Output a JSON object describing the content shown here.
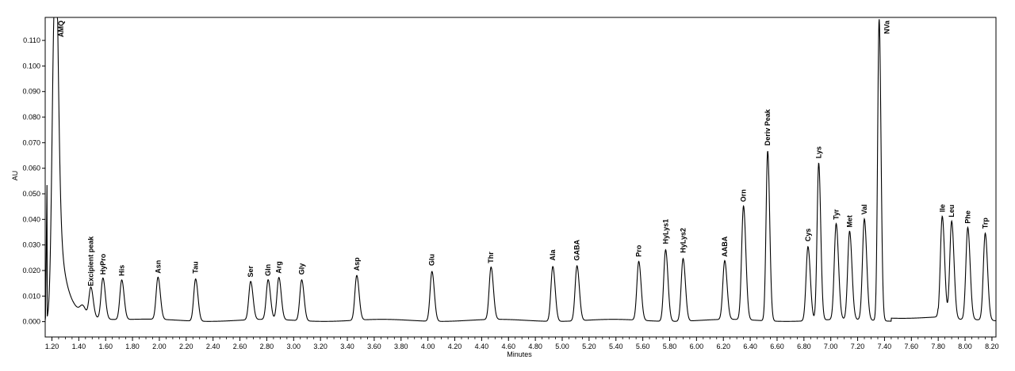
{
  "chart_data": {
    "type": "line",
    "xlabel": "Minutes",
    "ylabel": "AU",
    "xlim": [
      1.15,
      8.23
    ],
    "ylim": [
      -0.006,
      0.119
    ],
    "x_ticks": [
      "1.20",
      "1.40",
      "1.60",
      "1.80",
      "2.00",
      "2.20",
      "2.40",
      "2.60",
      "2.80",
      "3.00",
      "3.20",
      "3.40",
      "3.60",
      "3.80",
      "4.00",
      "4.20",
      "4.40",
      "4.60",
      "4.80",
      "5.00",
      "5.20",
      "5.40",
      "5.60",
      "5.80",
      "6.00",
      "6.20",
      "6.40",
      "6.60",
      "6.80",
      "7.00",
      "7.20",
      "7.40",
      "7.60",
      "7.80",
      "8.00",
      "8.20"
    ],
    "y_ticks": [
      "0.000",
      "0.010",
      "0.020",
      "0.030",
      "0.040",
      "0.050",
      "0.060",
      "0.070",
      "0.080",
      "0.090",
      "0.100",
      "0.110"
    ],
    "grid": false,
    "line_color": "#000000",
    "baseline": 0.0005,
    "peaks": [
      {
        "label": "AMQ",
        "rt": 1.22,
        "height": 0.125
      },
      {
        "label": "Excipient peak",
        "rt": 1.49,
        "height": 0.0115
      },
      {
        "label": "HyPro",
        "rt": 1.58,
        "height": 0.016
      },
      {
        "label": "His",
        "rt": 1.72,
        "height": 0.0155
      },
      {
        "label": "Asn",
        "rt": 1.99,
        "height": 0.0165
      },
      {
        "label": "Tau",
        "rt": 2.27,
        "height": 0.0165
      },
      {
        "label": "Ser",
        "rt": 2.68,
        "height": 0.015
      },
      {
        "label": "Gln",
        "rt": 2.81,
        "height": 0.0155
      },
      {
        "label": "Arg",
        "rt": 2.89,
        "height": 0.0165
      },
      {
        "label": "Gly",
        "rt": 3.06,
        "height": 0.016
      },
      {
        "label": "Asp",
        "rt": 3.47,
        "height": 0.0175
      },
      {
        "label": "Glu",
        "rt": 4.03,
        "height": 0.0195
      },
      {
        "label": "Thr",
        "rt": 4.47,
        "height": 0.0205
      },
      {
        "label": "Ala",
        "rt": 4.93,
        "height": 0.0215
      },
      {
        "label": "GABA",
        "rt": 5.11,
        "height": 0.0215
      },
      {
        "label": "Pro",
        "rt": 5.57,
        "height": 0.023
      },
      {
        "label": "HyLys1",
        "rt": 5.77,
        "height": 0.028
      },
      {
        "label": "HyLys2",
        "rt": 5.9,
        "height": 0.0245
      },
      {
        "label": "AABA",
        "rt": 6.21,
        "height": 0.023
      },
      {
        "label": "Orn",
        "rt": 6.35,
        "height": 0.0445
      },
      {
        "label": "Deriv Peak",
        "rt": 6.53,
        "height": 0.0665
      },
      {
        "label": "Cys",
        "rt": 6.83,
        "height": 0.029
      },
      {
        "label": "Lys",
        "rt": 6.91,
        "height": 0.0615
      },
      {
        "label": "Tyr",
        "rt": 7.04,
        "height": 0.0375
      },
      {
        "label": "Met",
        "rt": 7.14,
        "height": 0.0345
      },
      {
        "label": "Val",
        "rt": 7.25,
        "height": 0.0395
      },
      {
        "label": "NVa",
        "rt": 7.36,
        "height": 0.118
      },
      {
        "label": "Ile",
        "rt": 7.83,
        "height": 0.0405
      },
      {
        "label": "Leu",
        "rt": 7.9,
        "height": 0.0385
      },
      {
        "label": "Phe",
        "rt": 8.02,
        "height": 0.036
      },
      {
        "label": "Trp",
        "rt": 8.15,
        "height": 0.034
      }
    ]
  }
}
